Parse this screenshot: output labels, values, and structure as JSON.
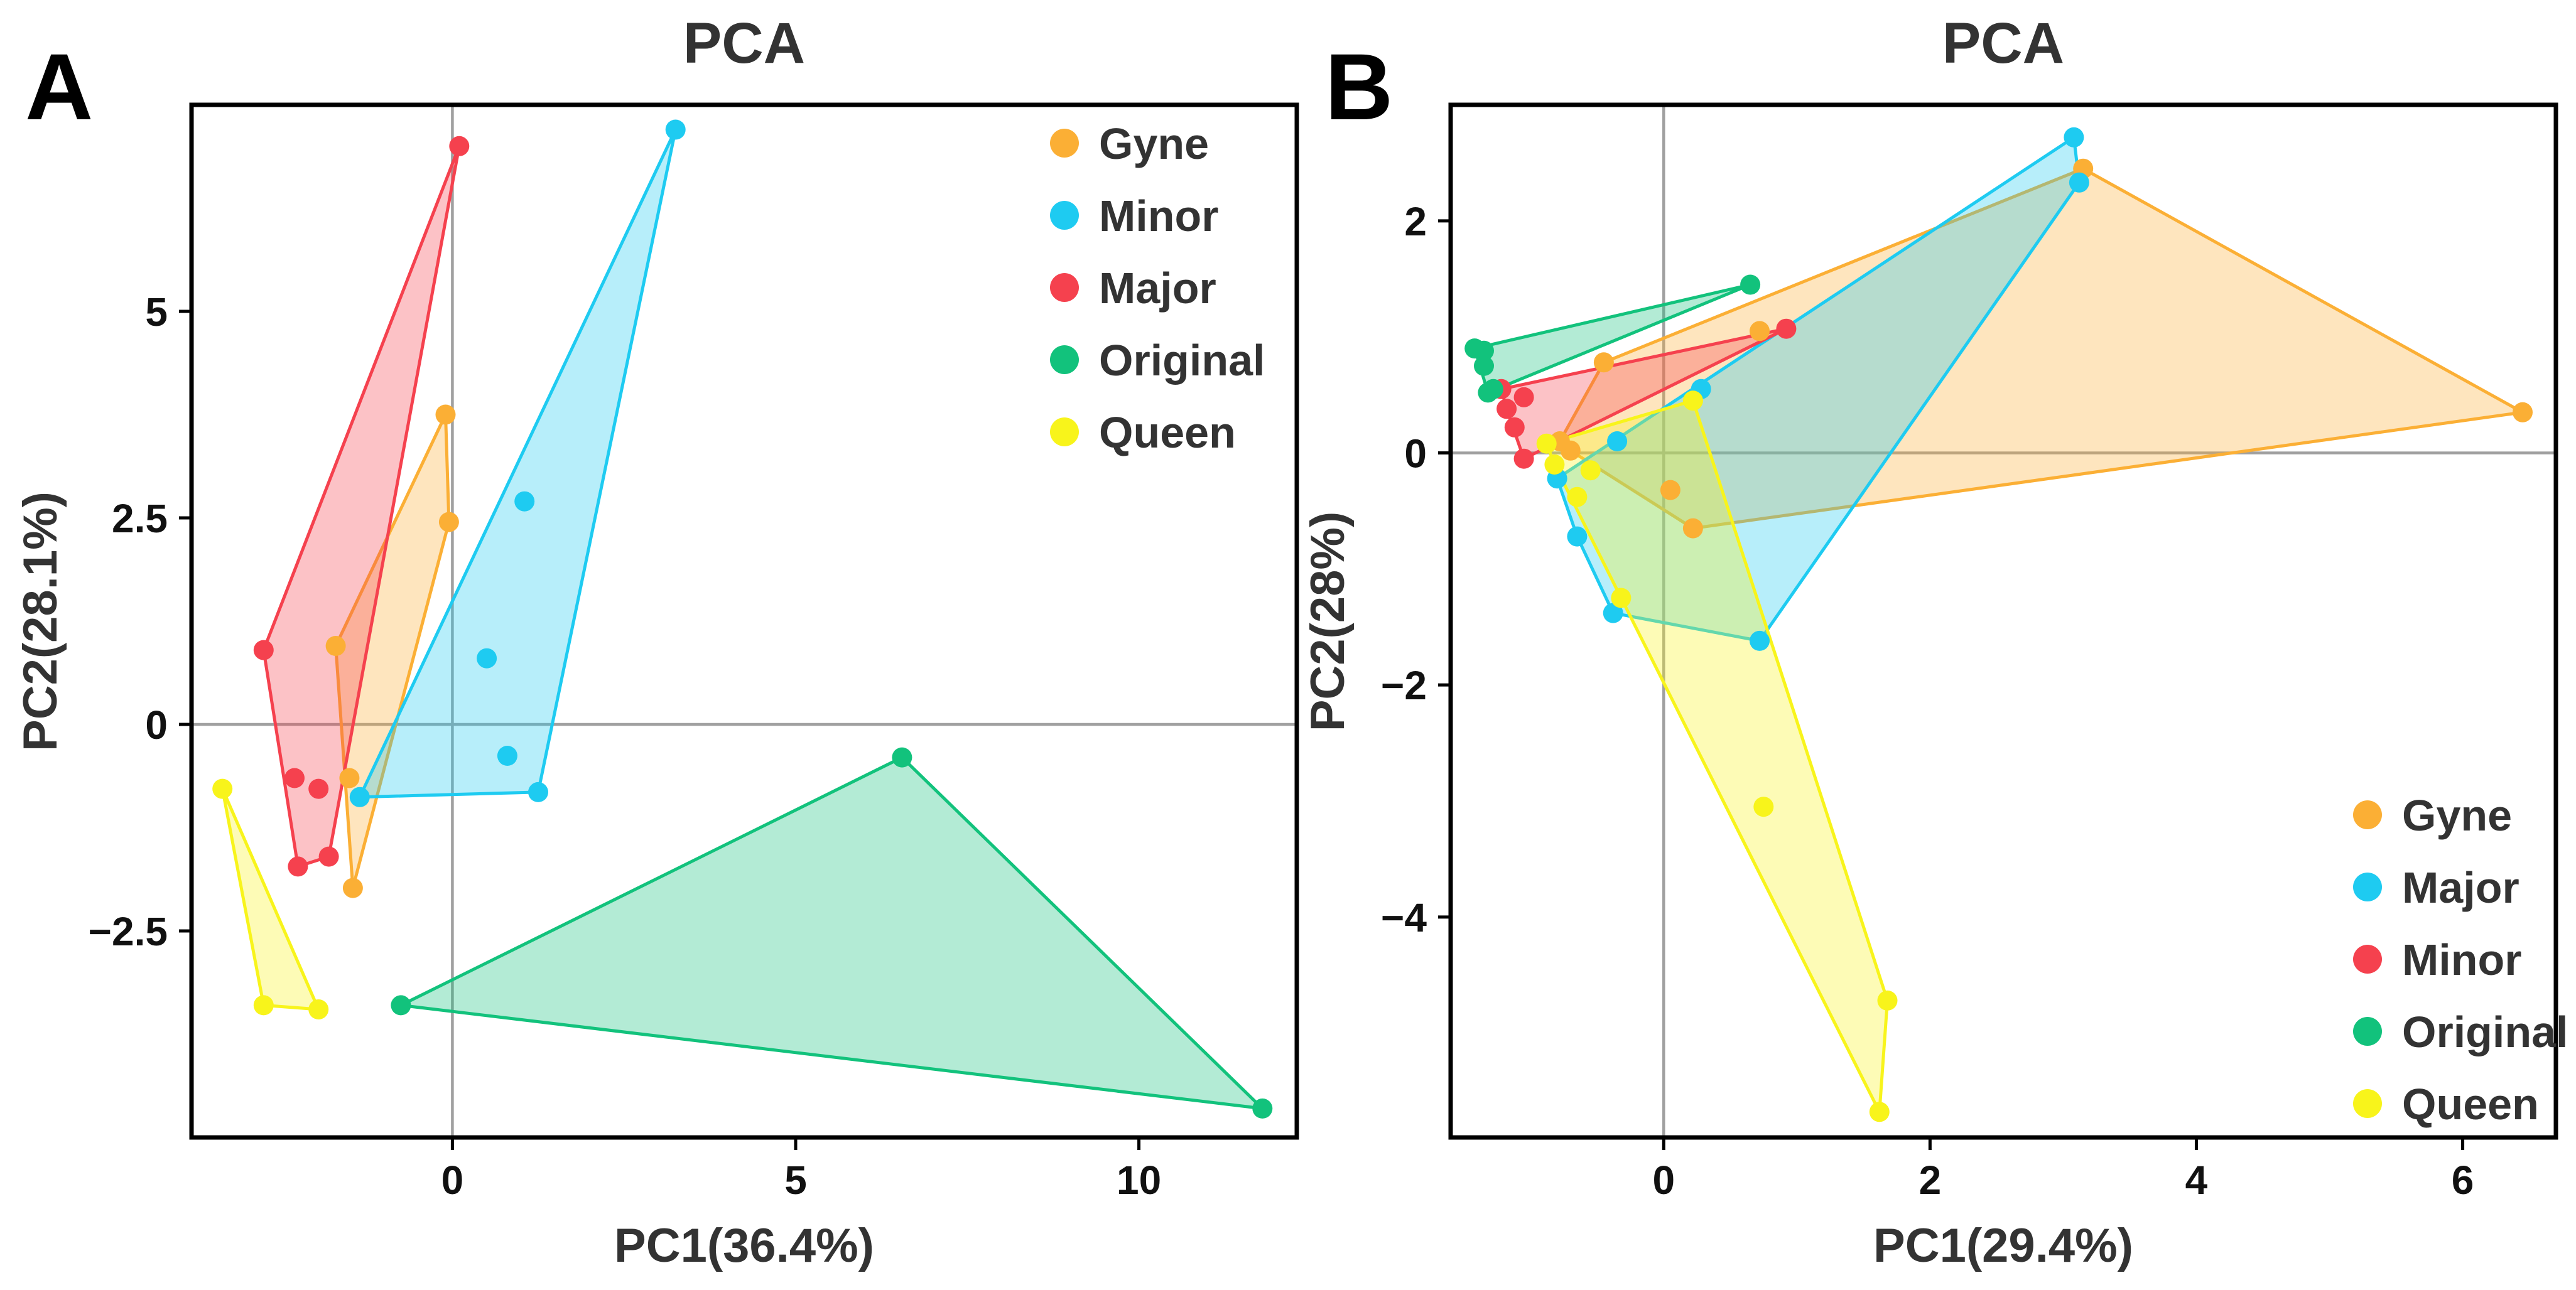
{
  "figure_labels": [
    "A",
    "B"
  ],
  "chart_data": [
    {
      "type": "scatter",
      "panel": "A",
      "title": "PCA",
      "xlabel": "PC1(36.4%)",
      "ylabel": "PC2(28.1%)",
      "xlim": [
        -3.8,
        12.3
      ],
      "ylim": [
        -5.0,
        7.5
      ],
      "xticks": [
        0,
        5,
        10
      ],
      "xtick_labels": [
        "0",
        "5",
        "10"
      ],
      "yticks": [
        5,
        2.5,
        0,
        -2.5
      ],
      "ytick_labels": [
        "5",
        "2.5",
        "0",
        "−2.5"
      ],
      "zero_lines": true,
      "legend_position": "top-right",
      "series": [
        {
          "name": "Gyne",
          "color": "#FBAF35",
          "points": [
            [
              -0.1,
              3.75
            ],
            [
              -0.05,
              2.45
            ],
            [
              -1.7,
              0.95
            ],
            [
              -1.5,
              -0.65
            ],
            [
              -1.45,
              -1.98
            ]
          ]
        },
        {
          "name": "Minor",
          "color": "#1ECBF1",
          "points": [
            [
              3.25,
              7.2
            ],
            [
              1.05,
              2.7
            ],
            [
              0.5,
              0.8
            ],
            [
              0.8,
              -0.38
            ],
            [
              1.25,
              -0.82
            ],
            [
              -1.35,
              -0.88
            ]
          ]
        },
        {
          "name": "Major",
          "color": "#F5414E",
          "points": [
            [
              0.1,
              7.0
            ],
            [
              -2.75,
              0.9
            ],
            [
              -2.3,
              -0.65
            ],
            [
              -1.95,
              -0.78
            ],
            [
              -1.8,
              -1.6
            ],
            [
              -2.25,
              -1.72
            ]
          ]
        },
        {
          "name": "Original",
          "color": "#12C27C",
          "points": [
            [
              6.55,
              -0.4
            ],
            [
              -0.75,
              -3.4
            ],
            [
              11.8,
              -4.65
            ]
          ]
        },
        {
          "name": "Queen",
          "color": "#F8F41B",
          "points": [
            [
              -3.35,
              -0.78
            ],
            [
              -2.75,
              -3.4
            ],
            [
              -1.95,
              -3.45
            ]
          ]
        }
      ]
    },
    {
      "type": "scatter",
      "panel": "B",
      "title": "PCA",
      "xlabel": "PC1(29.4%)",
      "ylabel": "PC2(28%)",
      "xlim": [
        -1.6,
        6.7
      ],
      "ylim": [
        -5.9,
        3.0
      ],
      "xticks": [
        0,
        2,
        4,
        6
      ],
      "xtick_labels": [
        "0",
        "2",
        "4",
        "6"
      ],
      "yticks": [
        2,
        0,
        -2,
        -4
      ],
      "ytick_labels": [
        "2",
        "0",
        "−2",
        "−4"
      ],
      "zero_lines": true,
      "legend_position": "bottom-right",
      "series": [
        {
          "name": "Gyne",
          "color": "#FBAF35",
          "points": [
            [
              6.45,
              0.35
            ],
            [
              3.15,
              2.45
            ],
            [
              0.72,
              1.05
            ],
            [
              -0.45,
              0.78
            ],
            [
              0.05,
              -0.32
            ],
            [
              0.22,
              -0.65
            ],
            [
              -0.7,
              0.02
            ],
            [
              -0.78,
              0.1
            ]
          ]
        },
        {
          "name": "Major",
          "color": "#1ECBF1",
          "points": [
            [
              3.08,
              2.72
            ],
            [
              3.12,
              2.33
            ],
            [
              0.28,
              0.55
            ],
            [
              -0.35,
              0.1
            ],
            [
              -0.8,
              -0.22
            ],
            [
              -0.65,
              -0.72
            ],
            [
              -0.38,
              -1.38
            ],
            [
              0.72,
              -1.62
            ]
          ]
        },
        {
          "name": "Minor",
          "color": "#F5414E",
          "points": [
            [
              0.92,
              1.07
            ],
            [
              -1.22,
              0.55
            ],
            [
              -1.05,
              0.48
            ],
            [
              -1.18,
              0.38
            ],
            [
              -1.12,
              0.22
            ],
            [
              -1.05,
              -0.05
            ]
          ]
        },
        {
          "name": "Original",
          "color": "#12C27C",
          "points": [
            [
              0.65,
              1.45
            ],
            [
              -1.42,
              0.9
            ],
            [
              -1.35,
              0.88
            ],
            [
              -1.35,
              0.75
            ],
            [
              -1.28,
              0.55
            ],
            [
              -1.32,
              0.52
            ]
          ]
        },
        {
          "name": "Queen",
          "color": "#F8F41B",
          "points": [
            [
              0.22,
              0.45
            ],
            [
              -0.88,
              0.08
            ],
            [
              -0.82,
              -0.1
            ],
            [
              -0.55,
              -0.15
            ],
            [
              -0.65,
              -0.38
            ],
            [
              -0.32,
              -1.25
            ],
            [
              0.75,
              -3.05
            ],
            [
              1.68,
              -4.72
            ],
            [
              1.62,
              -5.68
            ]
          ]
        }
      ]
    }
  ]
}
